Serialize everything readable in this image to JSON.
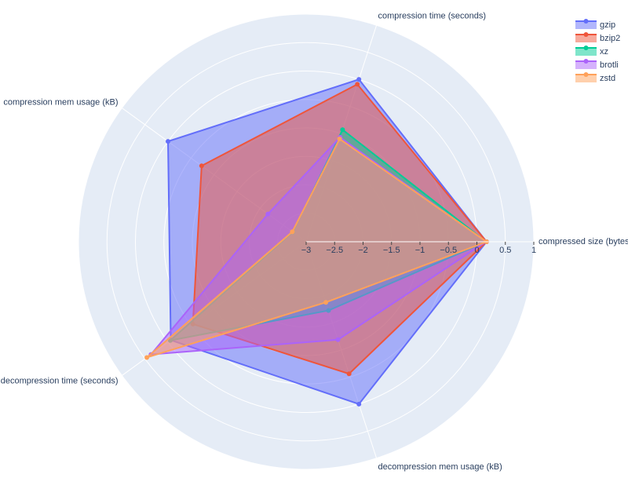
{
  "chart_data": {
    "type": "radar",
    "categories": [
      "compressed size (bytes)",
      "compression time (seconds)",
      "compression mem usage (kB)",
      "decompression time (seconds)",
      "decompression mem usage (kB)"
    ],
    "rlim": [
      -3,
      1
    ],
    "rticks": [
      {
        "value": -3,
        "label": "−3"
      },
      {
        "value": -2.5,
        "label": "−2.5"
      },
      {
        "value": -2,
        "label": "−2"
      },
      {
        "value": -1.5,
        "label": "−1.5"
      },
      {
        "value": -1,
        "label": "−1"
      },
      {
        "value": -0.5,
        "label": "−0.5"
      },
      0,
      0.5,
      1
    ],
    "series": [
      {
        "name": "gzip",
        "color": "#636efa",
        "values": [
          0.17,
          0,
          0,
          -0.06,
          0
        ]
      },
      {
        "name": "bzip2",
        "color": "#ef553b",
        "values": [
          0.17,
          -0.09,
          -0.73,
          -0.54,
          -0.56
        ]
      },
      {
        "name": "xz",
        "color": "#00cc96",
        "values": [
          0.16,
          -0.93,
          -2.71,
          -0.05,
          -1.73
        ]
      },
      {
        "name": "brotli",
        "color": "#ab63fa",
        "values": [
          0.16,
          -1.07,
          -2.17,
          0.37,
          -1.19
        ]
      },
      {
        "name": "zstd",
        "color": "#ffa15a",
        "values": [
          0.17,
          -1.1,
          -2.7,
          0.46,
          -1.88
        ]
      }
    ]
  }
}
